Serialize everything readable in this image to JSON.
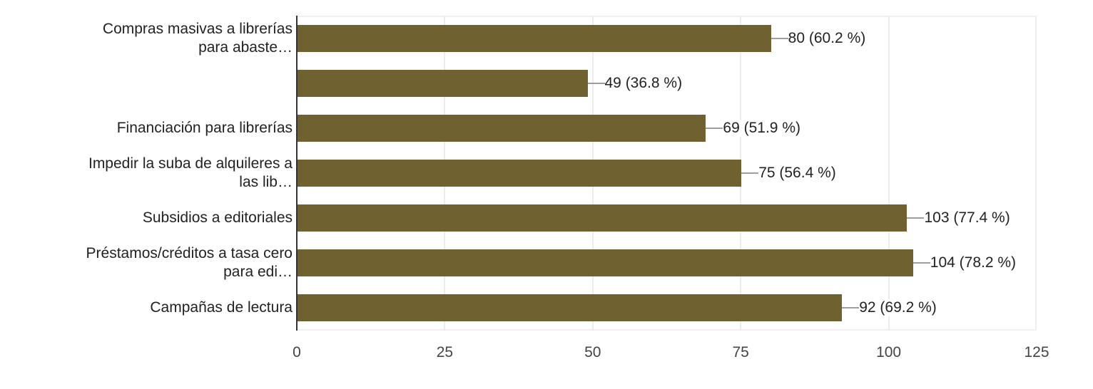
{
  "chart_data": {
    "type": "bar",
    "orientation": "horizontal",
    "title": "",
    "xlabel": "",
    "ylabel": "",
    "xlim": [
      0,
      125
    ],
    "grid": true,
    "legend": null,
    "bar_color": "#6f6230",
    "categories": [
      "Compras masivas a librerías para abaste…",
      "",
      "Financiación para librerías",
      "Impedir la suba de alquileres a las lib…",
      "Subsidios a editoriales",
      "Préstamos/créditos a tasa cero para edi…",
      "Campañas de lectura"
    ],
    "category_lines": [
      [
        "Compras masivas a librerías",
        "para abaste…"
      ],
      [
        ""
      ],
      [
        "Financiación para librerías"
      ],
      [
        "Impedir la suba de alquileres a",
        "las lib…"
      ],
      [
        "Subsidios a editoriales"
      ],
      [
        "Préstamos/créditos a tasa cero",
        "para edi…"
      ],
      [
        "Campañas de lectura"
      ]
    ],
    "values": [
      80,
      49,
      69,
      75,
      103,
      104,
      92
    ],
    "percentages": [
      "60.2 %",
      "36.8 %",
      "51.9 %",
      "56.4 %",
      "77.4 %",
      "78.2 %",
      "69.2 %"
    ],
    "data_labels": [
      "80 (60.2 %)",
      "49 (36.8 %)",
      "69 (51.9 %)",
      "75 (56.4 %)",
      "103 (77.4 %)",
      "104 (78.2 %)",
      "92 (69.2 %)"
    ],
    "x_ticks": [
      "0",
      "25",
      "50",
      "75",
      "100",
      "125"
    ],
    "x_tick_values": [
      0,
      25,
      50,
      75,
      100,
      125
    ]
  }
}
